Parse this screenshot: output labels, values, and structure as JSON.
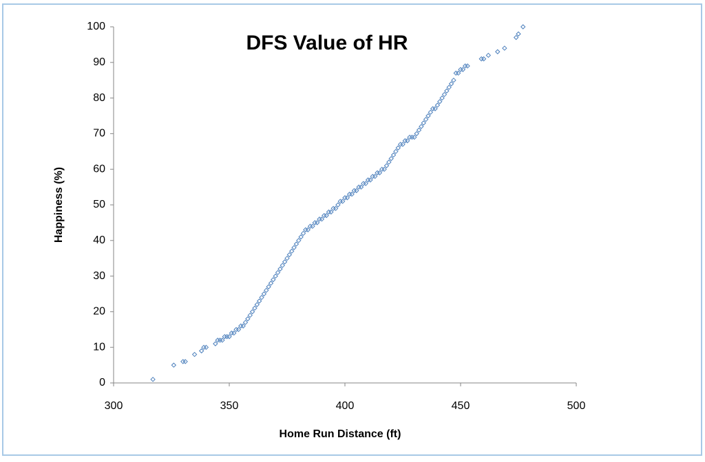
{
  "chart_data": {
    "type": "scatter",
    "title": "DFS Value of HR",
    "x_label": "Home Run Distance (ft)",
    "y_label": "Happiness (%)",
    "color": "#4a7ebb",
    "marker": "diamond",
    "grid": false,
    "xlim": [
      300,
      500
    ],
    "xticks": [
      300,
      350,
      400,
      450,
      500
    ],
    "ylim": [
      0,
      100
    ],
    "yticks": [
      0,
      10,
      20,
      30,
      40,
      50,
      60,
      70,
      80,
      90,
      100
    ],
    "x": [
      317,
      326,
      330,
      331,
      335,
      338,
      339,
      340,
      344,
      345,
      346,
      347,
      348,
      349,
      350,
      351,
      352,
      353,
      354,
      355,
      356,
      357,
      358,
      359,
      360,
      361,
      362,
      363,
      364,
      365,
      366,
      367,
      368,
      369,
      370,
      371,
      372,
      373,
      374,
      375,
      376,
      377,
      378,
      379,
      380,
      381,
      382,
      383,
      384,
      385,
      386,
      387,
      388,
      389,
      390,
      391,
      392,
      393,
      394,
      395,
      396,
      397,
      398,
      399,
      400,
      401,
      402,
      403,
      404,
      405,
      406,
      407,
      408,
      409,
      410,
      411,
      412,
      413,
      414,
      415,
      416,
      417,
      418,
      419,
      420,
      421,
      422,
      423,
      424,
      425,
      426,
      427,
      428,
      429,
      430,
      431,
      432,
      433,
      434,
      435,
      436,
      437,
      438,
      439,
      440,
      441,
      442,
      443,
      444,
      445,
      446,
      447,
      448,
      449,
      450,
      451,
      452,
      453,
      459,
      460,
      462,
      466,
      469,
      474,
      475,
      477
    ],
    "y": [
      1,
      5,
      6,
      6,
      8,
      9,
      10,
      10,
      11,
      12,
      12,
      12,
      13,
      13,
      13,
      14,
      14,
      15,
      15,
      16,
      16,
      17,
      18,
      19,
      20,
      21,
      22,
      23,
      24,
      25,
      26,
      27,
      28,
      29,
      30,
      31,
      32,
      33,
      34,
      35,
      36,
      37,
      38,
      39,
      40,
      41,
      42,
      43,
      43,
      44,
      44,
      45,
      45,
      46,
      46,
      47,
      47,
      48,
      48,
      49,
      49,
      50,
      51,
      51,
      52,
      52,
      53,
      53,
      54,
      54,
      55,
      55,
      56,
      56,
      57,
      57,
      58,
      58,
      59,
      59,
      60,
      60,
      61,
      62,
      63,
      64,
      65,
      66,
      67,
      67,
      68,
      68,
      69,
      69,
      69,
      70,
      71,
      72,
      73,
      74,
      75,
      76,
      77,
      77,
      78,
      79,
      80,
      81,
      82,
      83,
      84,
      85,
      87,
      87,
      88,
      88,
      89,
      89,
      91,
      91,
      92,
      93,
      94,
      97,
      98,
      100
    ]
  }
}
